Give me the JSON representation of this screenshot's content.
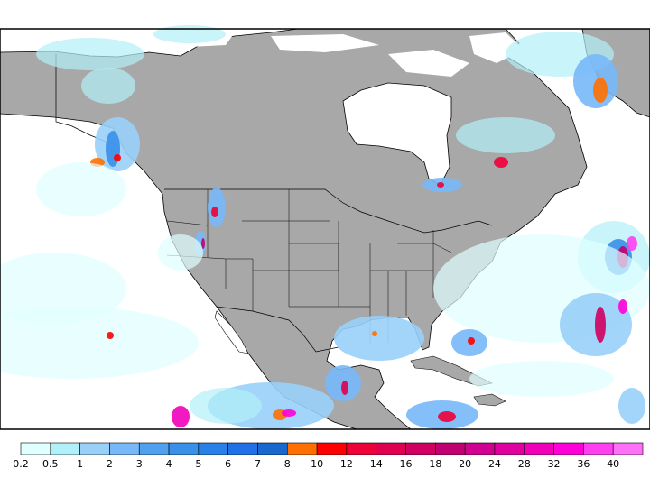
{
  "map": {
    "land_color": "#a8a8a8",
    "ocean_color": "#ffffff",
    "border_color": "#000000"
  },
  "colorbar": {
    "labels": [
      "0.2",
      "0.5",
      "1",
      "2",
      "3",
      "4",
      "5",
      "6",
      "7",
      "8",
      "10",
      "12",
      "14",
      "16",
      "18",
      "20",
      "24",
      "28",
      "32",
      "36",
      "40"
    ],
    "colors": [
      "#e0ffff",
      "#b0f0f8",
      "#98d0f8",
      "#78b8f8",
      "#50a0f0",
      "#3890e8",
      "#2880e8",
      "#2070e8",
      "#1868d0",
      "#ff7000",
      "#ff0000",
      "#f00038",
      "#e00050",
      "#d00060",
      "#c00070",
      "#d00090",
      "#e000a0",
      "#f000b8",
      "#ff00d8",
      "#ff40f0",
      "#ff70f8"
    ]
  }
}
